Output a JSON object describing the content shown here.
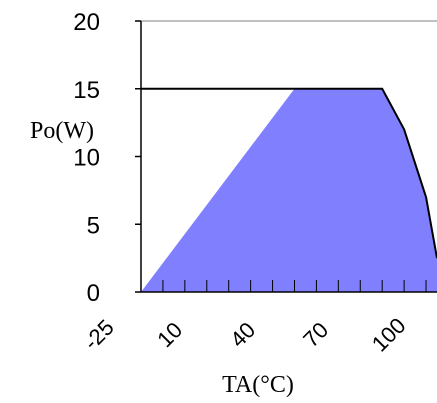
{
  "chart_data": {
    "type": "area",
    "ylabel": "Po(W)",
    "xlabel": "TA(°C)",
    "ylim": [
      0,
      20
    ],
    "yticks": [
      "0",
      "5",
      "10",
      "15",
      "20"
    ],
    "xticks": [
      "-25",
      "10",
      "40",
      "70",
      "100"
    ],
    "xlim": [
      -25,
      110
    ],
    "grid": false,
    "fill_color": "#8080ff",
    "line_color": "#000000",
    "x": [
      -25,
      45,
      85,
      95,
      105,
      110
    ],
    "y": [
      0,
      15,
      15,
      12,
      7,
      2.5
    ]
  }
}
